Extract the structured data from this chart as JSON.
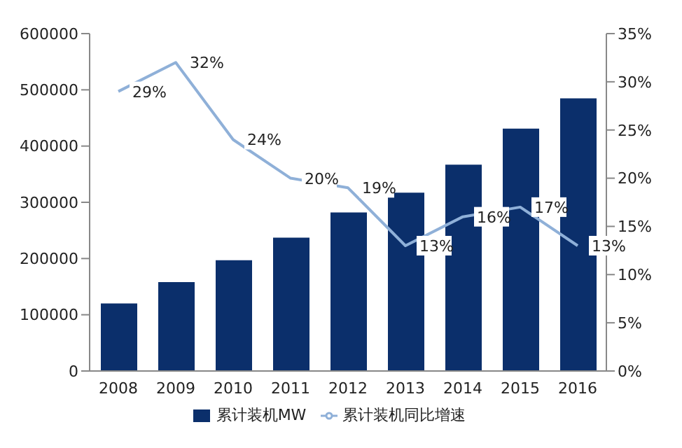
{
  "chart_data": {
    "type": "bar",
    "categories": [
      "2008",
      "2009",
      "2010",
      "2011",
      "2012",
      "2013",
      "2014",
      "2015",
      "2016"
    ],
    "series": [
      {
        "name": "累计装机MW",
        "color": "#0b2f6b",
        "values": [
          120000,
          158000,
          197000,
          237000,
          282000,
          317000,
          367000,
          431000,
          485000
        ]
      },
      {
        "name": "累计装机同比增速",
        "type": "line",
        "axis": "y2",
        "color": "#8fb0d8",
        "values": [
          29,
          32,
          24,
          20,
          19,
          13,
          16,
          17,
          13
        ],
        "value_labels": [
          "29%",
          "32%",
          "24%",
          "20%",
          "19%",
          "13%",
          "16%",
          "17%",
          "13%"
        ]
      }
    ],
    "ylim": [
      0,
      600000
    ],
    "yticks": [
      0,
      100000,
      200000,
      300000,
      400000,
      500000,
      600000
    ],
    "y2lim": [
      0,
      35
    ],
    "y2ticks": [
      {
        "value": 0,
        "label": "0%"
      },
      {
        "value": 5,
        "label": "5%"
      },
      {
        "value": 10,
        "label": "10%"
      },
      {
        "value": 15,
        "label": "15%"
      },
      {
        "value": 20,
        "label": "20%"
      },
      {
        "value": 25,
        "label": "25%"
      },
      {
        "value": 30,
        "label": "30%"
      },
      {
        "value": 35,
        "label": "35%"
      }
    ],
    "legend": "bottom",
    "grid": false,
    "marker": "none",
    "line_style": "solid"
  }
}
